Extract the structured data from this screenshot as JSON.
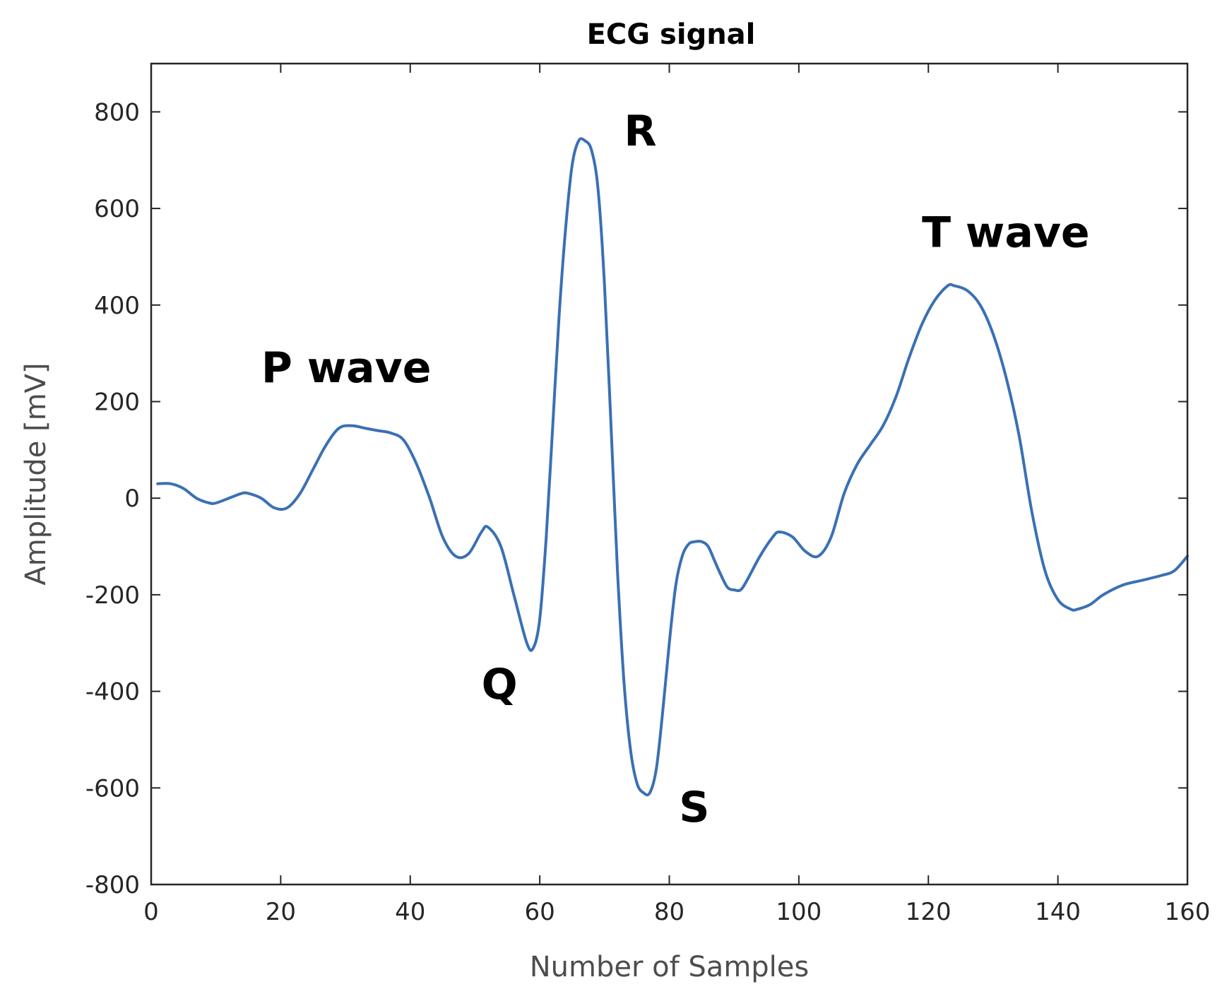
{
  "chart_data": {
    "type": "line",
    "title": "ECG signal",
    "xlabel": "Number of Samples",
    "ylabel": "Amplitude [mV]",
    "xlim": [
      0,
      160
    ],
    "ylim": [
      -800,
      900
    ],
    "xticks": [
      0,
      20,
      40,
      60,
      80,
      100,
      120,
      140,
      160
    ],
    "yticks": [
      -800,
      -600,
      -400,
      -200,
      0,
      200,
      400,
      600,
      800
    ],
    "xtick_labels": [
      "0",
      "20",
      "40",
      "60",
      "80",
      "100",
      "120",
      "140",
      "160"
    ],
    "ytick_labels": [
      "-800",
      "-600",
      "-400",
      "-200",
      "0",
      "200",
      "400",
      "600",
      "800"
    ],
    "grid": false,
    "line_color": "#3a70b4",
    "series": [
      {
        "x": [
          1,
          3,
          5,
          7,
          9,
          10,
          12,
          14,
          15,
          17,
          19,
          21,
          23,
          25,
          27,
          29,
          31,
          33,
          35,
          37,
          39,
          41,
          43,
          45,
          47,
          49,
          51,
          52,
          54,
          56,
          58,
          59,
          60,
          61,
          62,
          63,
          64,
          65,
          66,
          67,
          68,
          69,
          70,
          71,
          72,
          73,
          74,
          75,
          76,
          77,
          78,
          79,
          80,
          81,
          82,
          83,
          84,
          85,
          86,
          87,
          88,
          89,
          90,
          91,
          92,
          94,
          96,
          97,
          99,
          101,
          103,
          105,
          107,
          109,
          111,
          113,
          115,
          117,
          119,
          121,
          123,
          124,
          126,
          128,
          130,
          132,
          134,
          136,
          138,
          140,
          142,
          143,
          145,
          147,
          150,
          153,
          156,
          158,
          160
        ],
        "y": [
          30,
          30,
          20,
          0,
          -10,
          -10,
          0,
          10,
          10,
          0,
          -20,
          -20,
          10,
          60,
          110,
          145,
          150,
          145,
          140,
          135,
          120,
          70,
          0,
          -80,
          -120,
          -115,
          -70,
          -60,
          -100,
          -200,
          -300,
          -310,
          -250,
          -80,
          150,
          380,
          560,
          690,
          740,
          740,
          720,
          640,
          440,
          150,
          -150,
          -380,
          -520,
          -590,
          -610,
          -610,
          -560,
          -440,
          -300,
          -180,
          -120,
          -95,
          -90,
          -90,
          -100,
          -130,
          -160,
          -185,
          -190,
          -190,
          -170,
          -120,
          -80,
          -70,
          -80,
          -110,
          -120,
          -80,
          10,
          70,
          110,
          150,
          210,
          290,
          360,
          410,
          440,
          440,
          430,
          400,
          340,
          250,
          130,
          -30,
          -150,
          -210,
          -230,
          -230,
          -220,
          -200,
          -180,
          -170,
          -160,
          -150,
          -120
        ]
      }
    ],
    "annotations": [
      {
        "text": "P wave",
        "x": 17,
        "y": 240
      },
      {
        "text": "Q",
        "x": 51,
        "y": -415
      },
      {
        "text": "R",
        "x": 73,
        "y": 730
      },
      {
        "text": "S",
        "x": 81.5,
        "y": -670
      },
      {
        "text": "T wave",
        "x": 119,
        "y": 520
      }
    ]
  }
}
